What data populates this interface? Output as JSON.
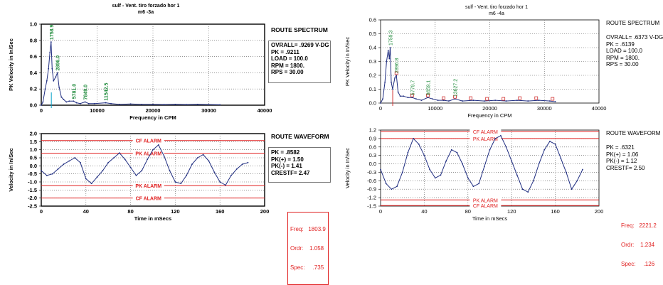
{
  "colors": {
    "spectrum": "#1f2d80",
    "alarm": "#e02020",
    "peak_label": "#1e8a3a",
    "grid": "#555555",
    "marker": "#00a0c8",
    "marker_right": "#d03030"
  },
  "panels": [
    {
      "id": "left",
      "title": "sulf - Vent. tiro forzado hor 1",
      "subtitle": "m6       -3a",
      "spectrum_header": "ROUTE SPECTRUM",
      "spectrum_info": [
        "OVRALL= .9269 V-DG",
        "PK  = .9211",
        "LOAD = 100.0",
        "RPM = 1800.",
        "RPS = 30.00"
      ],
      "waveform_header": "ROUTE WAVEFORM",
      "waveform_info": [
        "PK  =  .8582",
        "PK(+) = 1.50",
        "PK(-) = 1.41",
        "CRESTF= 2.47"
      ],
      "footer": [
        "Freq:   1803.9",
        "Ordr:    1.058",
        "Spec:     .735"
      ]
    },
    {
      "id": "right",
      "title": "sulf - Vent. tiro forzado hor 1",
      "subtitle": "m6           -4a",
      "spectrum_header": "ROUTE SPECTRUM",
      "spectrum_info": [
        "OVRALL= .6373 V-DG",
        "PK  = .6139",
        "LOAD = 100.0",
        "RPM = 1800.",
        "RPS = 30.00"
      ],
      "waveform_header": "ROUTE WAVEFORM",
      "waveform_info": [
        "PK  = .6321",
        "PK(+) = 1.06",
        "PK(-) = 1.12",
        "CRESTF= 2.50"
      ],
      "footer": [
        "Freq:   2221.2",
        "Ordr:    1.234",
        "Spec:     .126"
      ]
    }
  ],
  "chart_data": [
    {
      "type": "line",
      "panel": "left",
      "name": "spectrum",
      "xlabel": "Frequency in CPM",
      "ylabel": "PK Velocity in In/Sec",
      "xlim": [
        0,
        40000
      ],
      "ylim": [
        0,
        1.0
      ],
      "xticks": [
        0,
        10000,
        20000,
        30000,
        40000
      ],
      "yticks": [
        0,
        0.2,
        0.4,
        0.6,
        0.8,
        1.0
      ],
      "x": [
        0,
        300,
        700,
        1000,
        1300,
        1550,
        1759,
        1950,
        2200,
        2600,
        2896,
        3200,
        3600,
        4000,
        4500,
        5000,
        5781,
        6300,
        7000,
        7849,
        8500,
        9500,
        11542,
        12500,
        14000,
        16000,
        18000,
        20000,
        22000,
        24000,
        26000,
        28000,
        30000,
        32000
      ],
      "values": [
        0.0,
        0.04,
        0.2,
        0.3,
        0.45,
        0.65,
        0.78,
        0.45,
        0.3,
        0.35,
        0.4,
        0.22,
        0.1,
        0.07,
        0.04,
        0.05,
        0.05,
        0.03,
        0.02,
        0.04,
        0.02,
        0.02,
        0.03,
        0.02,
        0.01,
        0.015,
        0.01,
        0.01,
        0.008,
        0.01,
        0.008,
        0.01,
        0.008,
        0.005
      ],
      "peak_labels": [
        {
          "x": 1759,
          "label": "1758.9"
        },
        {
          "x": 2896,
          "label": "2896.0"
        },
        {
          "x": 5781,
          "label": "5781.0"
        },
        {
          "x": 7849,
          "label": "7849.0"
        },
        {
          "x": 11542,
          "label": "11542.5"
        }
      ],
      "cursor_x": 1804
    },
    {
      "type": "line",
      "panel": "left",
      "name": "waveform",
      "xlabel": "Time in mSecs",
      "ylabel": "Velocity in In/Sec",
      "xlim": [
        0,
        200
      ],
      "ylim": [
        -2.5,
        2.0
      ],
      "xticks": [
        0,
        40,
        80,
        120,
        160,
        200
      ],
      "yticks": [
        -2.5,
        -2.0,
        -1.5,
        -1.0,
        -0.5,
        0,
        0.5,
        1.0,
        1.5,
        2.0
      ],
      "alarms": [
        {
          "y": 1.57,
          "label": "CF ALARM"
        },
        {
          "y": 0.78,
          "label": "PK ALARM"
        },
        {
          "y": -1.23,
          "label": "PK ALARM"
        },
        {
          "y": -2.0,
          "label": "CF ALARM"
        }
      ],
      "x": [
        0,
        5,
        10,
        15,
        20,
        25,
        30,
        35,
        40,
        45,
        50,
        55,
        60,
        65,
        70,
        75,
        80,
        85,
        90,
        95,
        100,
        105,
        110,
        115,
        120,
        125,
        130,
        135,
        140,
        145,
        150,
        155,
        160,
        165,
        170,
        175,
        180,
        185
      ],
      "values": [
        -0.3,
        -0.6,
        -0.5,
        -0.2,
        0.1,
        0.3,
        0.5,
        0.2,
        -0.8,
        -1.1,
        -0.7,
        -0.3,
        0.2,
        0.5,
        0.8,
        0.4,
        -0.1,
        -0.6,
        -0.3,
        0.4,
        1.0,
        1.3,
        0.6,
        -0.3,
        -1.0,
        -1.1,
        -0.6,
        0.1,
        0.5,
        0.7,
        0.3,
        -0.4,
        -1.0,
        -1.2,
        -0.6,
        -0.2,
        0.1,
        0.2
      ]
    },
    {
      "type": "line",
      "panel": "right",
      "name": "spectrum",
      "xlabel": "Frequency in CPM",
      "ylabel": "PK Velocity in In/Sec",
      "xlim": [
        0,
        40000
      ],
      "ylim": [
        0,
        0.6
      ],
      "xticks": [
        0,
        10000,
        20000,
        30000,
        40000
      ],
      "yticks": [
        0,
        0.1,
        0.2,
        0.3,
        0.4,
        0.5,
        0.6
      ],
      "x": [
        0,
        400,
        800,
        1100,
        1400,
        1600,
        1759,
        1950,
        2200,
        2600,
        2896,
        3200,
        3600,
        4200,
        5000,
        5779,
        6500,
        7500,
        8659,
        9500,
        10500,
        11500,
        12500,
        13627,
        15000,
        17000,
        19000,
        21000,
        23000,
        25000,
        27000,
        29000,
        31000,
        32000
      ],
      "values": [
        0.0,
        0.03,
        0.15,
        0.3,
        0.38,
        0.32,
        0.4,
        0.15,
        0.1,
        0.18,
        0.2,
        0.08,
        0.05,
        0.05,
        0.04,
        0.04,
        0.03,
        0.02,
        0.04,
        0.03,
        0.02,
        0.02,
        0.015,
        0.03,
        0.015,
        0.02,
        0.015,
        0.02,
        0.015,
        0.02,
        0.015,
        0.02,
        0.015,
        0.01
      ],
      "peak_labels": [
        {
          "x": 1759,
          "label": "1759.3"
        },
        {
          "x": 2896,
          "label": "2896.8"
        },
        {
          "x": 5779,
          "label": "5779.7"
        },
        {
          "x": 8659,
          "label": "8659.1"
        },
        {
          "x": 13627,
          "label": "13627.2"
        }
      ],
      "markers_x": [
        2896,
        5779,
        8659,
        11542,
        13627,
        16500,
        19500,
        22500,
        25500,
        28500,
        31500
      ],
      "cursor_x": 2221
    },
    {
      "type": "line",
      "panel": "right",
      "name": "waveform",
      "xlabel": "Time in mSecs",
      "ylabel": "Velocity in In/Sec",
      "xlim": [
        0,
        200
      ],
      "ylim": [
        -1.5,
        1.2
      ],
      "xticks": [
        0,
        40,
        80,
        120,
        160,
        200
      ],
      "yticks": [
        -1.5,
        -1.2,
        -0.9,
        -0.6,
        -0.3,
        0,
        0.3,
        0.6,
        0.9,
        1.2
      ],
      "alarms": [
        {
          "y": 1.15,
          "label": "CF ALARM"
        },
        {
          "y": 0.9,
          "label": "PK ALARM"
        },
        {
          "y": -1.28,
          "label": "PK ALARM"
        },
        {
          "y": -1.48,
          "label": "CF ALARM"
        }
      ],
      "x": [
        0,
        5,
        10,
        15,
        20,
        25,
        30,
        35,
        40,
        45,
        50,
        55,
        60,
        65,
        70,
        75,
        80,
        85,
        90,
        95,
        100,
        105,
        110,
        115,
        120,
        125,
        130,
        135,
        140,
        145,
        150,
        155,
        160,
        165,
        170,
        175,
        180,
        185
      ],
      "values": [
        -0.2,
        -0.7,
        -0.9,
        -0.8,
        -0.3,
        0.4,
        0.9,
        0.7,
        0.3,
        -0.2,
        -0.5,
        -0.4,
        0.1,
        0.5,
        0.4,
        0.0,
        -0.5,
        -0.8,
        -0.7,
        -0.1,
        0.5,
        0.9,
        1.0,
        0.6,
        0.1,
        -0.4,
        -0.9,
        -1.0,
        -0.6,
        0.0,
        0.5,
        0.8,
        0.7,
        0.2,
        -0.3,
        -0.9,
        -0.6,
        -0.2
      ]
    }
  ]
}
